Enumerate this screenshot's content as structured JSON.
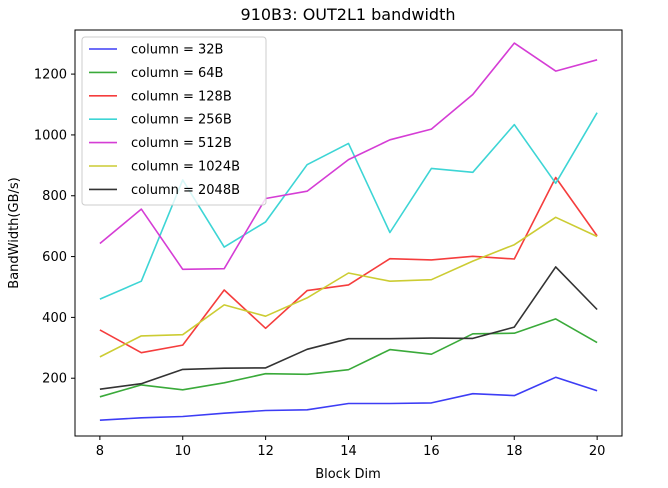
{
  "chart_data": {
    "type": "line",
    "title": "910B3: OUT2L1 bandwidth",
    "xlabel": "Block Dim",
    "ylabel": "BandWidth(GB/s)",
    "x": [
      8,
      9,
      10,
      11,
      12,
      13,
      14,
      15,
      16,
      17,
      18,
      19,
      20
    ],
    "xlim": [
      7.4,
      20.6
    ],
    "ylim": [
      10,
      1345
    ],
    "xticks": [
      "8",
      "10",
      "12",
      "14",
      "16",
      "18",
      "20"
    ],
    "yticks": [
      "200",
      "400",
      "600",
      "800",
      "1000",
      "1200"
    ],
    "grid": false,
    "legend_position": "upper-left",
    "series": [
      {
        "name": "column = 32B",
        "color": "#3d3df5",
        "values": [
          62,
          70,
          74,
          85,
          94,
          96,
          117,
          117,
          119,
          149,
          143,
          203,
          159
        ]
      },
      {
        "name": "column = 64B",
        "color": "#3aaa3a",
        "values": [
          139,
          178,
          162,
          185,
          215,
          213,
          228,
          294,
          279,
          346,
          348,
          395,
          317
        ]
      },
      {
        "name": "column = 128B",
        "color": "#f53d3d",
        "values": [
          359,
          284,
          309,
          490,
          364,
          488,
          507,
          593,
          589,
          601,
          592,
          860,
          668
        ]
      },
      {
        "name": "column = 256B",
        "color": "#3dd5d5",
        "values": [
          460,
          519,
          852,
          631,
          714,
          902,
          972,
          679,
          890,
          877,
          1034,
          841,
          1073
        ]
      },
      {
        "name": "column = 512B",
        "color": "#d53dd5",
        "values": [
          643,
          756,
          558,
          560,
          791,
          815,
          919,
          984,
          1019,
          1133,
          1302,
          1210,
          1247
        ]
      },
      {
        "name": "column = 1024B",
        "color": "#cccc33",
        "values": [
          270,
          339,
          343,
          441,
          404,
          464,
          546,
          519,
          524,
          585,
          639,
          729,
          666
        ]
      },
      {
        "name": "column = 2048B",
        "color": "#333333",
        "values": [
          164,
          182,
          229,
          233,
          234,
          295,
          330,
          330,
          332,
          331,
          368,
          566,
          426
        ]
      }
    ]
  }
}
